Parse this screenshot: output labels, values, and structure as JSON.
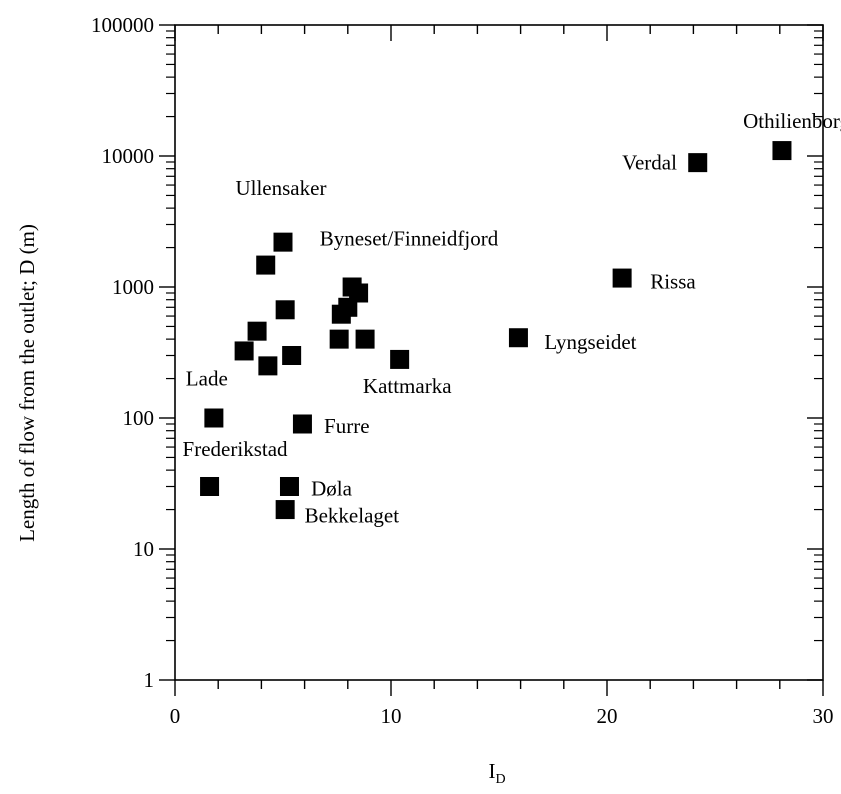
{
  "chart_data": {
    "type": "scatter",
    "xlabel": "I",
    "xlabel_sub": "D",
    "ylabel": "Length of flow from the outlet; D (m)",
    "xlim": [
      0,
      30
    ],
    "ylim": [
      1,
      100000
    ],
    "yscale": "log",
    "grid": false,
    "x_ticks": [
      0,
      10,
      20,
      30
    ],
    "x_tick_labels": [
      "0",
      "10",
      "20",
      "30"
    ],
    "y_ticks": [
      1,
      10,
      100,
      1000,
      10000,
      100000
    ],
    "y_tick_labels": [
      "1",
      "10",
      "100",
      "1000",
      "10000",
      "100000"
    ],
    "marker": "square",
    "marker_color": "#000000",
    "points": [
      {
        "x": 28.1,
        "y": 11000
      },
      {
        "x": 24.2,
        "y": 8900
      },
      {
        "x": 20.7,
        "y": 1170
      },
      {
        "x": 15.9,
        "y": 410
      },
      {
        "x": 10.4,
        "y": 280
      },
      {
        "x": 8.2,
        "y": 1000
      },
      {
        "x": 8.5,
        "y": 900
      },
      {
        "x": 8.0,
        "y": 700
      },
      {
        "x": 7.7,
        "y": 620
      },
      {
        "x": 7.6,
        "y": 400
      },
      {
        "x": 8.8,
        "y": 400
      },
      {
        "x": 5.0,
        "y": 2200
      },
      {
        "x": 4.2,
        "y": 1470
      },
      {
        "x": 5.1,
        "y": 670
      },
      {
        "x": 3.8,
        "y": 460
      },
      {
        "x": 3.2,
        "y": 325
      },
      {
        "x": 5.4,
        "y": 300
      },
      {
        "x": 4.3,
        "y": 250
      },
      {
        "x": 1.8,
        "y": 100
      },
      {
        "x": 5.9,
        "y": 90
      },
      {
        "x": 1.6,
        "y": 30
      },
      {
        "x": 5.3,
        "y": 30
      },
      {
        "x": 5.1,
        "y": 20
      }
    ],
    "annotations": [
      {
        "text": "Othilienborg",
        "x": 26.3,
        "y": 18500
      },
      {
        "text": "Verdal",
        "x": 20.7,
        "y": 8900
      },
      {
        "text": "Rissa",
        "x": 22.0,
        "y": 1100
      },
      {
        "text": "Lyngseidet",
        "x": 17.1,
        "y": 380
      },
      {
        "text": "Kattmarka",
        "x": 8.7,
        "y": 175
      },
      {
        "text": "Byneset/Finneidfjord",
        "x": 6.7,
        "y": 2350
      },
      {
        "text": "Ullensaker",
        "x": 2.8,
        "y": 5700
      },
      {
        "text": "Lade",
        "x": 0.5,
        "y": 200
      },
      {
        "text": "Furre",
        "x": 6.9,
        "y": 87
      },
      {
        "text": "Frederikstad",
        "x": 0.35,
        "y": 58
      },
      {
        "text": "Døla",
        "x": 6.3,
        "y": 29
      },
      {
        "text": "Bekkelaget",
        "x": 6.0,
        "y": 18
      }
    ]
  }
}
